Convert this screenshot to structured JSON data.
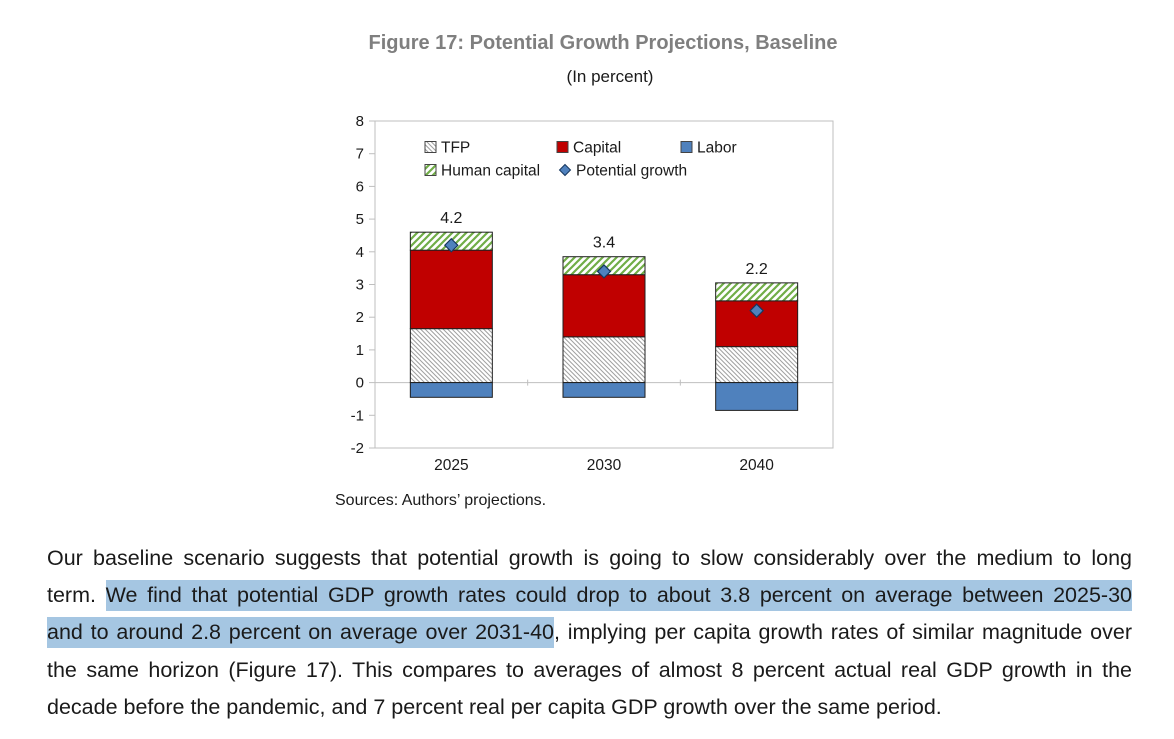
{
  "figure": {
    "title": "Figure 17: Potential Growth Projections, Baseline",
    "subtitle": "(In percent)",
    "source_note": "Sources: Authors’ projections."
  },
  "chart_data": {
    "type": "bar",
    "stacked": true,
    "title": "Figure 17: Potential Growth Projections, Baseline",
    "subtitle": "(In percent)",
    "categories": [
      "2025",
      "2030",
      "2040"
    ],
    "series": [
      {
        "name": "TFP",
        "style": "hatch_gray",
        "values": [
          1.65,
          1.4,
          1.1
        ]
      },
      {
        "name": "Capital",
        "style": "solid_red",
        "values": [
          2.4,
          1.9,
          1.4
        ]
      },
      {
        "name": "Labor",
        "style": "solid_blue",
        "values": [
          -0.45,
          -0.45,
          -0.85
        ]
      },
      {
        "name": "Human capital",
        "style": "hatch_green",
        "values": [
          0.55,
          0.55,
          0.55
        ]
      },
      {
        "name": "Potential growth",
        "style": "diamond",
        "values": [
          4.2,
          3.4,
          2.2
        ]
      }
    ],
    "bar_total_labels": [
      "4.2",
      "3.4",
      "2.2"
    ],
    "ylim": [
      -2,
      8
    ],
    "ytick_step": 1,
    "grid": false,
    "legend_position": "top-inside",
    "legend_rows": [
      [
        "TFP",
        "Capital",
        "Labor"
      ],
      [
        "Human capital",
        "Potential growth"
      ]
    ]
  },
  "paragraph": {
    "lines": [
      {
        "segments": [
          {
            "text": "Our baseline scenario suggests that potential growth is going to slow considerably over the medium to long",
            "highlight": false
          }
        ]
      },
      {
        "segments": [
          {
            "text": "term. ",
            "highlight": false
          },
          {
            "text": "We find that potential GDP growth rates could drop to about 3.8 percent on average between 2025-30",
            "highlight": true
          }
        ]
      },
      {
        "segments": [
          {
            "text": "and to around 2.8 percent on average over 2031-40",
            "highlight": true
          },
          {
            "text": ", implying per capita growth rates of similar magnitude over",
            "highlight": false
          }
        ]
      },
      {
        "segments": [
          {
            "text": "the same horizon (Figure 17). This compares to averages of almost 8 percent actual real GDP growth in the",
            "highlight": false
          }
        ]
      },
      {
        "segments": [
          {
            "text": "decade before the pandemic, and 7 percent real per capita GDP growth over the same period.",
            "highlight": false
          }
        ]
      }
    ]
  },
  "colors": {
    "title_gray": "#7f7f7f",
    "body_text": "#1a1a1a",
    "highlight_blue": "#a5c6e2",
    "capital_red": "#c00000",
    "labor_blue": "#4f81bd",
    "human_capital_green": "#70ad47",
    "tfp_hatch_gray": "#a0a0a0",
    "diamond_fill": "#4f81bd",
    "diamond_border": "#17375e",
    "axis_gray": "#bfbfbf",
    "bar_outline": "#1f1f1f"
  }
}
